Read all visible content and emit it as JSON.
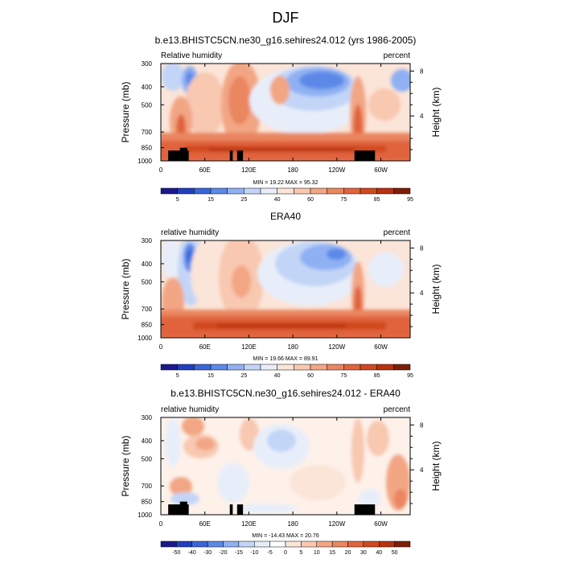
{
  "page_title": "DJF",
  "colors": {
    "rh_scale": [
      "#1a1a8c",
      "#1f3fbf",
      "#3a66d9",
      "#5b89e8",
      "#8fb0f2",
      "#c2d5f7",
      "#e8eef9",
      "#fbe4d8",
      "#f8c8b0",
      "#f2a684",
      "#ea8660",
      "#e0643d",
      "#d1481f",
      "#b83210",
      "#7f1d06"
    ],
    "diff_scale": [
      "#1a1a8c",
      "#1f3fbf",
      "#3a66d9",
      "#5b89e8",
      "#8fb0f2",
      "#c2d5f7",
      "#e8eef9",
      "#ffffff",
      "#fbe4d8",
      "#f8c8b0",
      "#f2a684",
      "#ea8660",
      "#e0643d",
      "#d1481f",
      "#b83210",
      "#7f1d06"
    ],
    "topography": "#000000"
  },
  "chart_data": [
    {
      "type": "heatmap",
      "title": "b.e13.BHISTC5CN.ne30_g16.sehires24.012 (yrs 1986-2005)",
      "left_label": "Relative humidity",
      "right_label": "percent",
      "ylabel": "Pressure (mb)",
      "right_axis_label": "Height (km)",
      "x_ticks": [
        "0",
        "60E",
        "120E",
        "180",
        "120W",
        "60W"
      ],
      "x_tick_values": [
        0,
        60,
        120,
        180,
        240,
        300
      ],
      "xlim": [
        0,
        340
      ],
      "y_ticks": [
        "300",
        "400",
        "500",
        "700",
        "850",
        "1000"
      ],
      "y_tick_values": [
        300,
        400,
        500,
        700,
        850,
        1000
      ],
      "ylim": [
        1000,
        300
      ],
      "height_ticks": [
        "8",
        "4"
      ],
      "height_tick_values": [
        8,
        4
      ],
      "stats": "MIN = 19.22  MAX = 95.32",
      "min": 19.22,
      "max": 95.32,
      "colorbar_labels": [
        "5",
        "15",
        "25",
        "40",
        "60",
        "75",
        "85",
        "95"
      ],
      "colorbar_levels": [
        5,
        10,
        15,
        20,
        25,
        30,
        40,
        50,
        60,
        70,
        75,
        80,
        85,
        90,
        95
      ],
      "topography": [
        [
          10,
          38,
          880
        ],
        [
          26,
          36,
          850
        ],
        [
          94,
          98,
          880
        ],
        [
          104,
          112,
          880
        ],
        [
          264,
          292,
          880
        ]
      ]
    },
    {
      "type": "heatmap",
      "title": "ERA40",
      "left_label": "relative humidity",
      "right_label": "percent",
      "ylabel": "Pressure (mb)",
      "right_axis_label": "Height (km)",
      "x_ticks": [
        "0",
        "60E",
        "120E",
        "180",
        "120W",
        "60W"
      ],
      "x_tick_values": [
        0,
        60,
        120,
        180,
        240,
        300
      ],
      "xlim": [
        0,
        340
      ],
      "y_ticks": [
        "300",
        "400",
        "500",
        "700",
        "850",
        "1000"
      ],
      "y_tick_values": [
        300,
        400,
        500,
        700,
        850,
        1000
      ],
      "ylim": [
        1000,
        300
      ],
      "height_ticks": [
        "8",
        "4"
      ],
      "height_tick_values": [
        8,
        4
      ],
      "stats": "MIN = 19.66  MAX = 89.91",
      "min": 19.66,
      "max": 89.91,
      "colorbar_labels": [
        "5",
        "15",
        "25",
        "40",
        "60",
        "75",
        "85",
        "95"
      ],
      "colorbar_levels": [
        5,
        10,
        15,
        20,
        25,
        30,
        40,
        50,
        60,
        70,
        75,
        80,
        85,
        90,
        95
      ],
      "topography": []
    },
    {
      "type": "heatmap",
      "title": "b.e13.BHISTC5CN.ne30_g16.sehires24.012 - ERA40",
      "left_label": "relative humidity",
      "right_label": "percent",
      "ylabel": "Pressure (mb)",
      "right_axis_label": "Height (km)",
      "x_ticks": [
        "0",
        "60E",
        "120E",
        "180",
        "120W",
        "60W"
      ],
      "x_tick_values": [
        0,
        60,
        120,
        180,
        240,
        300
      ],
      "xlim": [
        0,
        340
      ],
      "y_ticks": [
        "300",
        "400",
        "500",
        "700",
        "850",
        "1000"
      ],
      "y_tick_values": [
        300,
        400,
        500,
        700,
        850,
        1000
      ],
      "ylim": [
        1000,
        300
      ],
      "height_ticks": [
        "8",
        "4"
      ],
      "height_tick_values": [
        8,
        4
      ],
      "stats": "MIN = -14.43  MAX = 20.76",
      "min": -14.43,
      "max": 20.76,
      "colorbar_labels": [
        "-50",
        "-40",
        "-30",
        "-20",
        "-15",
        "-10",
        "-5",
        "0",
        "5",
        "10",
        "15",
        "20",
        "30",
        "40",
        "50"
      ],
      "colorbar_levels": [
        -50,
        -40,
        -30,
        -20,
        -15,
        -10,
        -5,
        0,
        5,
        10,
        15,
        20,
        30,
        40,
        50
      ],
      "topography": [
        [
          10,
          38,
          880
        ],
        [
          26,
          36,
          850
        ],
        [
          94,
          98,
          880
        ],
        [
          104,
          112,
          880
        ],
        [
          264,
          292,
          880
        ]
      ]
    }
  ]
}
